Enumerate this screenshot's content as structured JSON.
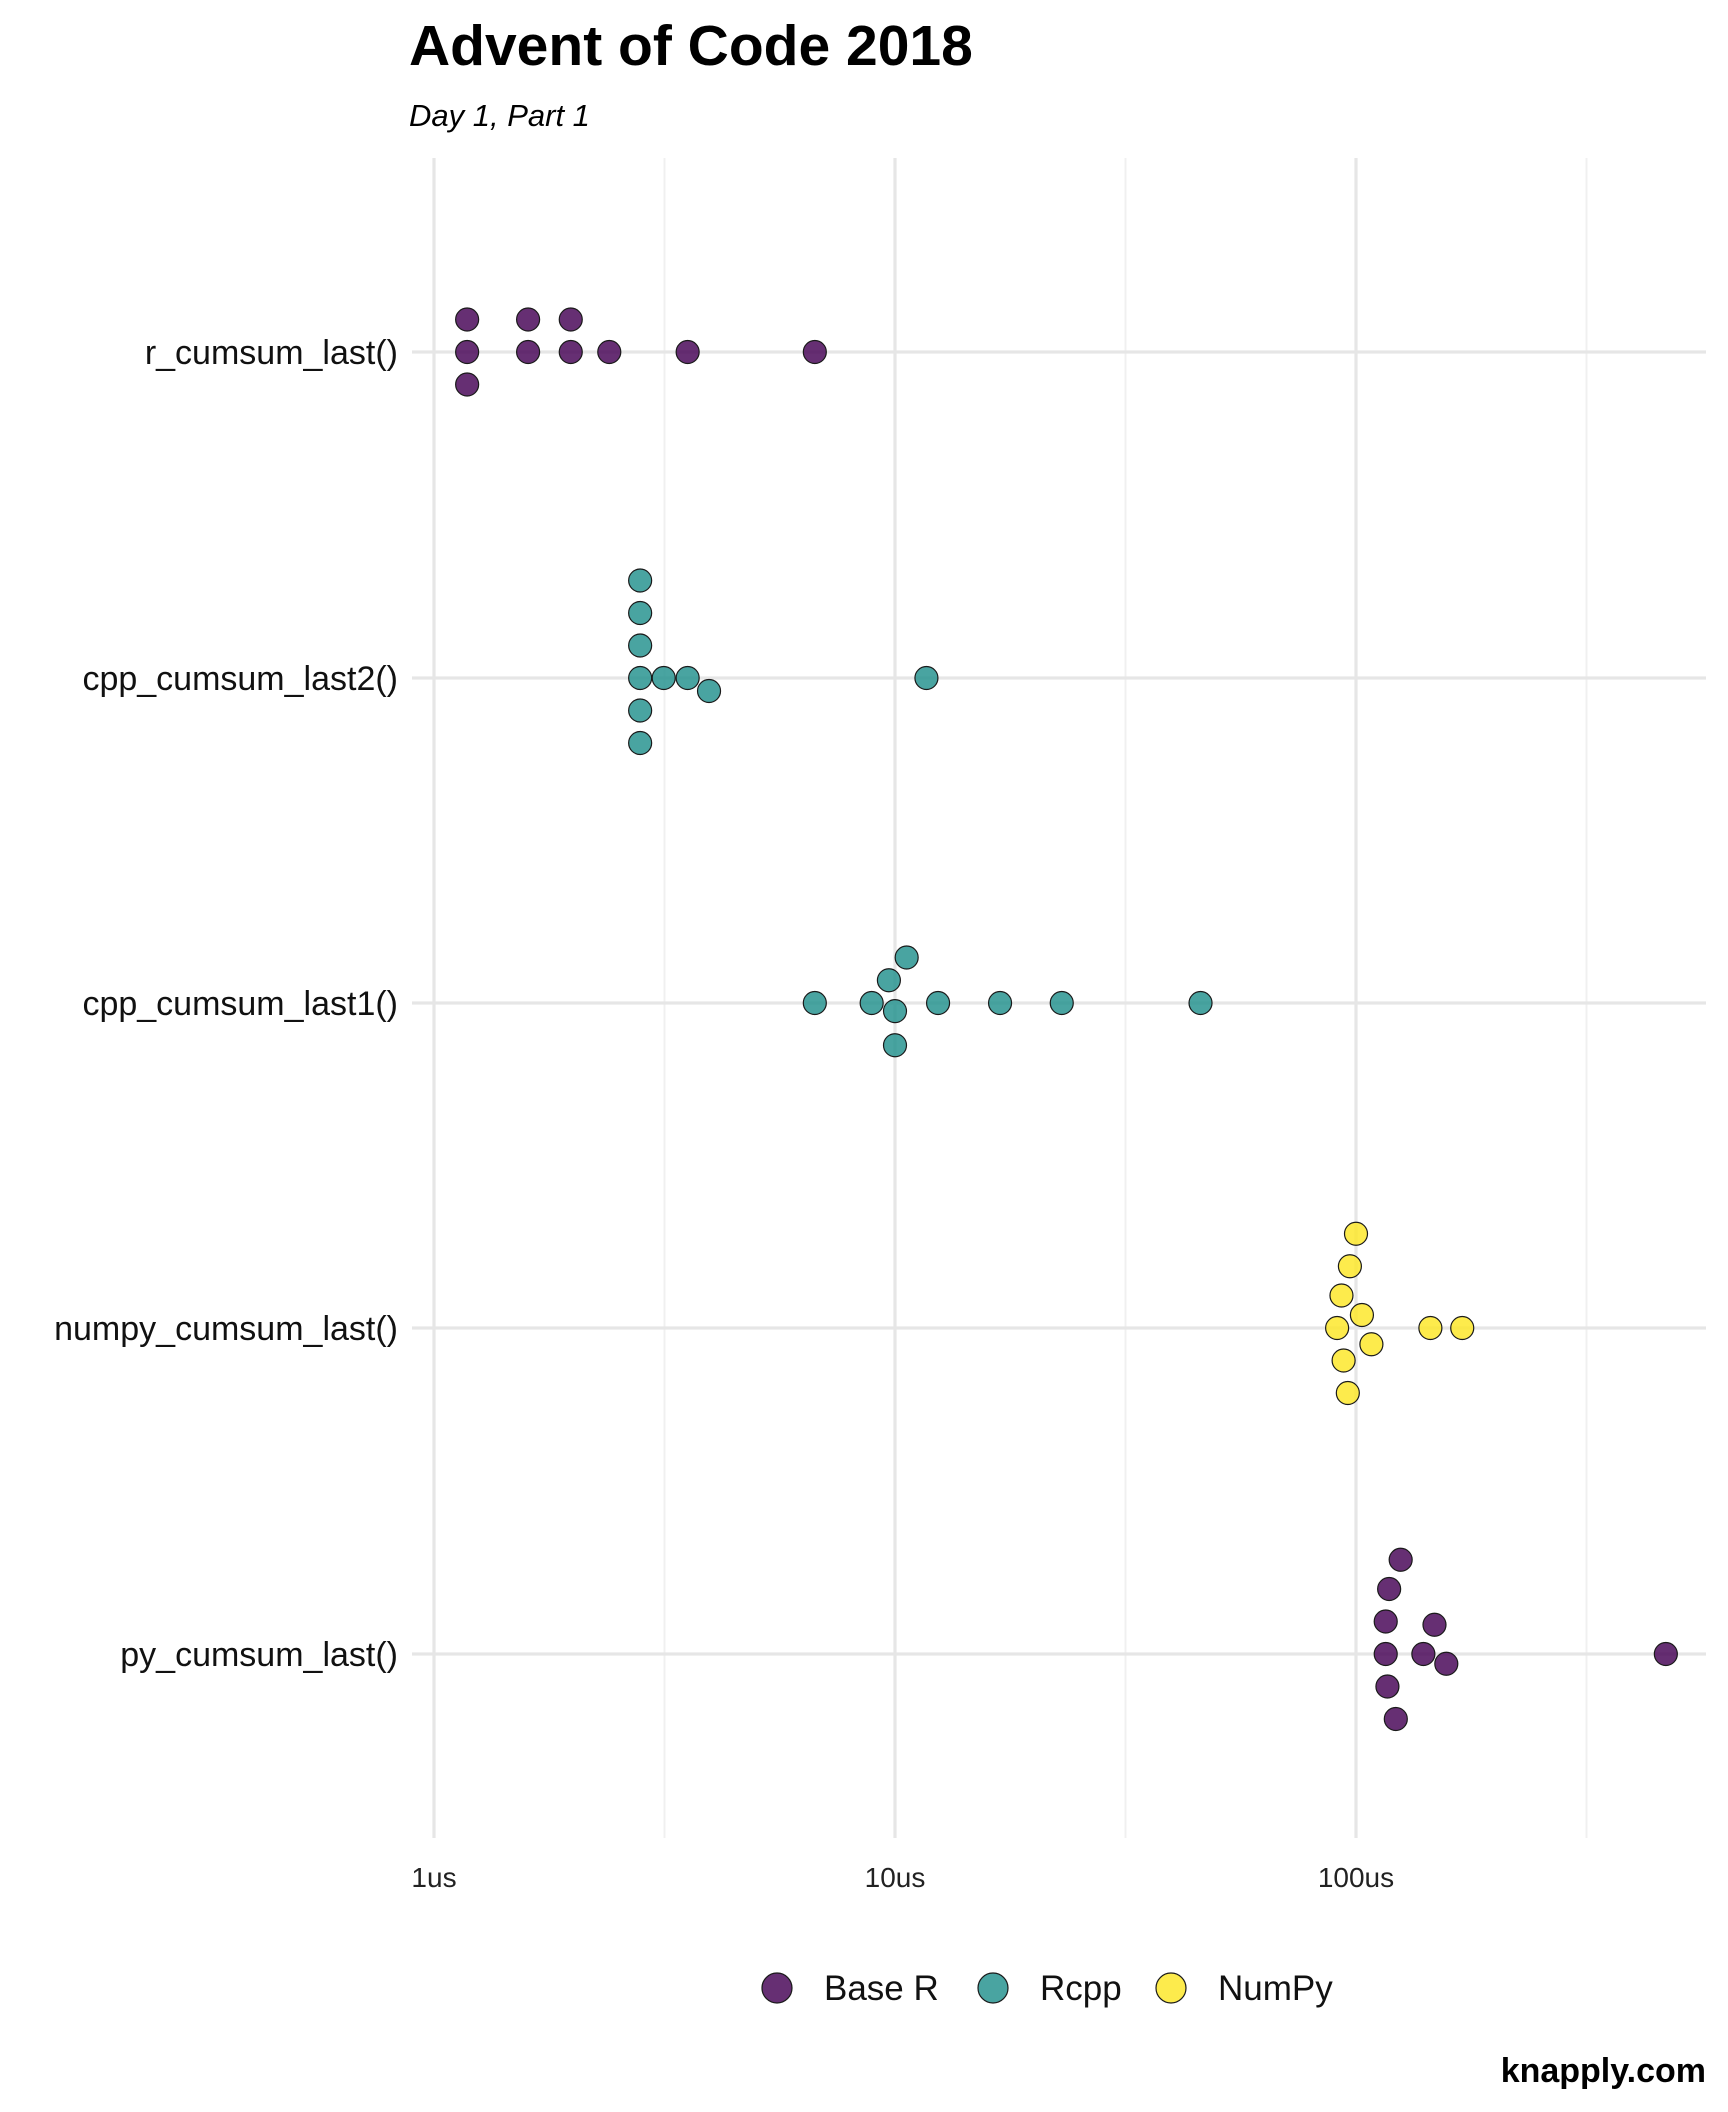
{
  "chart_data": {
    "type": "scatter",
    "title": "Advent of Code 2018",
    "subtitle": "Day 1, Part 1",
    "caption": "knapply.com",
    "x_scale": "log10",
    "xlim_us": [
      0.9,
      700
    ],
    "x_ticks": [
      {
        "value": 1,
        "label": "1us"
      },
      {
        "value": 10,
        "label": "10us"
      },
      {
        "value": 100,
        "label": "100us"
      }
    ],
    "x_minor": [
      3.1623,
      31.623,
      316.23
    ],
    "categories": [
      "r_cumsum_last()",
      "cpp_cumsum_last2()",
      "cpp_cumsum_last1()",
      "numpy_cumsum_last()",
      "py_cumsum_last()"
    ],
    "legend": [
      {
        "name": "Base R",
        "color": "#440154"
      },
      {
        "name": "Rcpp",
        "color": "#21908c"
      },
      {
        "name": "NumPy",
        "color": "#fde725"
      }
    ],
    "series": [
      {
        "category": "r_cumsum_last()",
        "group": "Base R",
        "points": [
          {
            "x": 1.18,
            "offset": 0.1
          },
          {
            "x": 1.18,
            "offset": 0
          },
          {
            "x": 1.18,
            "offset": -0.1
          },
          {
            "x": 1.6,
            "offset": 0.1
          },
          {
            "x": 1.6,
            "offset": 0
          },
          {
            "x": 1.98,
            "offset": 0.1
          },
          {
            "x": 1.98,
            "offset": 0
          },
          {
            "x": 2.4,
            "offset": 0
          },
          {
            "x": 3.55,
            "offset": 0
          },
          {
            "x": 6.7,
            "offset": 0
          }
        ]
      },
      {
        "category": "cpp_cumsum_last2()",
        "group": "Rcpp",
        "points": [
          {
            "x": 2.8,
            "offset": 0.3
          },
          {
            "x": 2.8,
            "offset": 0.2
          },
          {
            "x": 2.8,
            "offset": 0.1
          },
          {
            "x": 2.8,
            "offset": 0
          },
          {
            "x": 2.8,
            "offset": -0.1
          },
          {
            "x": 2.8,
            "offset": -0.2
          },
          {
            "x": 3.15,
            "offset": 0
          },
          {
            "x": 3.55,
            "offset": 0
          },
          {
            "x": 3.95,
            "offset": -0.04
          },
          {
            "x": 11.7,
            "offset": 0
          }
        ]
      },
      {
        "category": "cpp_cumsum_last1()",
        "group": "Rcpp",
        "points": [
          {
            "x": 6.7,
            "offset": 0
          },
          {
            "x": 8.9,
            "offset": 0
          },
          {
            "x": 9.7,
            "offset": 0.07
          },
          {
            "x": 10.6,
            "offset": 0.14
          },
          {
            "x": 10.0,
            "offset": -0.025
          },
          {
            "x": 10.0,
            "offset": -0.13
          },
          {
            "x": 12.4,
            "offset": 0
          },
          {
            "x": 16.9,
            "offset": 0
          },
          {
            "x": 23.0,
            "offset": 0
          },
          {
            "x": 46.0,
            "offset": 0
          }
        ]
      },
      {
        "category": "numpy_cumsum_last()",
        "group": "NumPy",
        "points": [
          {
            "x": 100,
            "offset": 0.29
          },
          {
            "x": 97,
            "offset": 0.19
          },
          {
            "x": 93,
            "offset": 0.1
          },
          {
            "x": 103,
            "offset": 0.04
          },
          {
            "x": 91,
            "offset": 0
          },
          {
            "x": 108,
            "offset": -0.05
          },
          {
            "x": 94,
            "offset": -0.1
          },
          {
            "x": 96,
            "offset": -0.2
          },
          {
            "x": 145,
            "offset": 0
          },
          {
            "x": 170,
            "offset": 0
          }
        ]
      },
      {
        "category": "py_cumsum_last()",
        "group": "Base R",
        "points": [
          {
            "x": 125,
            "offset": 0.29
          },
          {
            "x": 118,
            "offset": 0.2
          },
          {
            "x": 116,
            "offset": 0.1
          },
          {
            "x": 148,
            "offset": 0.09
          },
          {
            "x": 116,
            "offset": 0
          },
          {
            "x": 140,
            "offset": 0
          },
          {
            "x": 157,
            "offset": -0.03
          },
          {
            "x": 117,
            "offset": -0.1
          },
          {
            "x": 122,
            "offset": -0.2
          },
          {
            "x": 470,
            "offset": 0
          }
        ]
      }
    ]
  }
}
